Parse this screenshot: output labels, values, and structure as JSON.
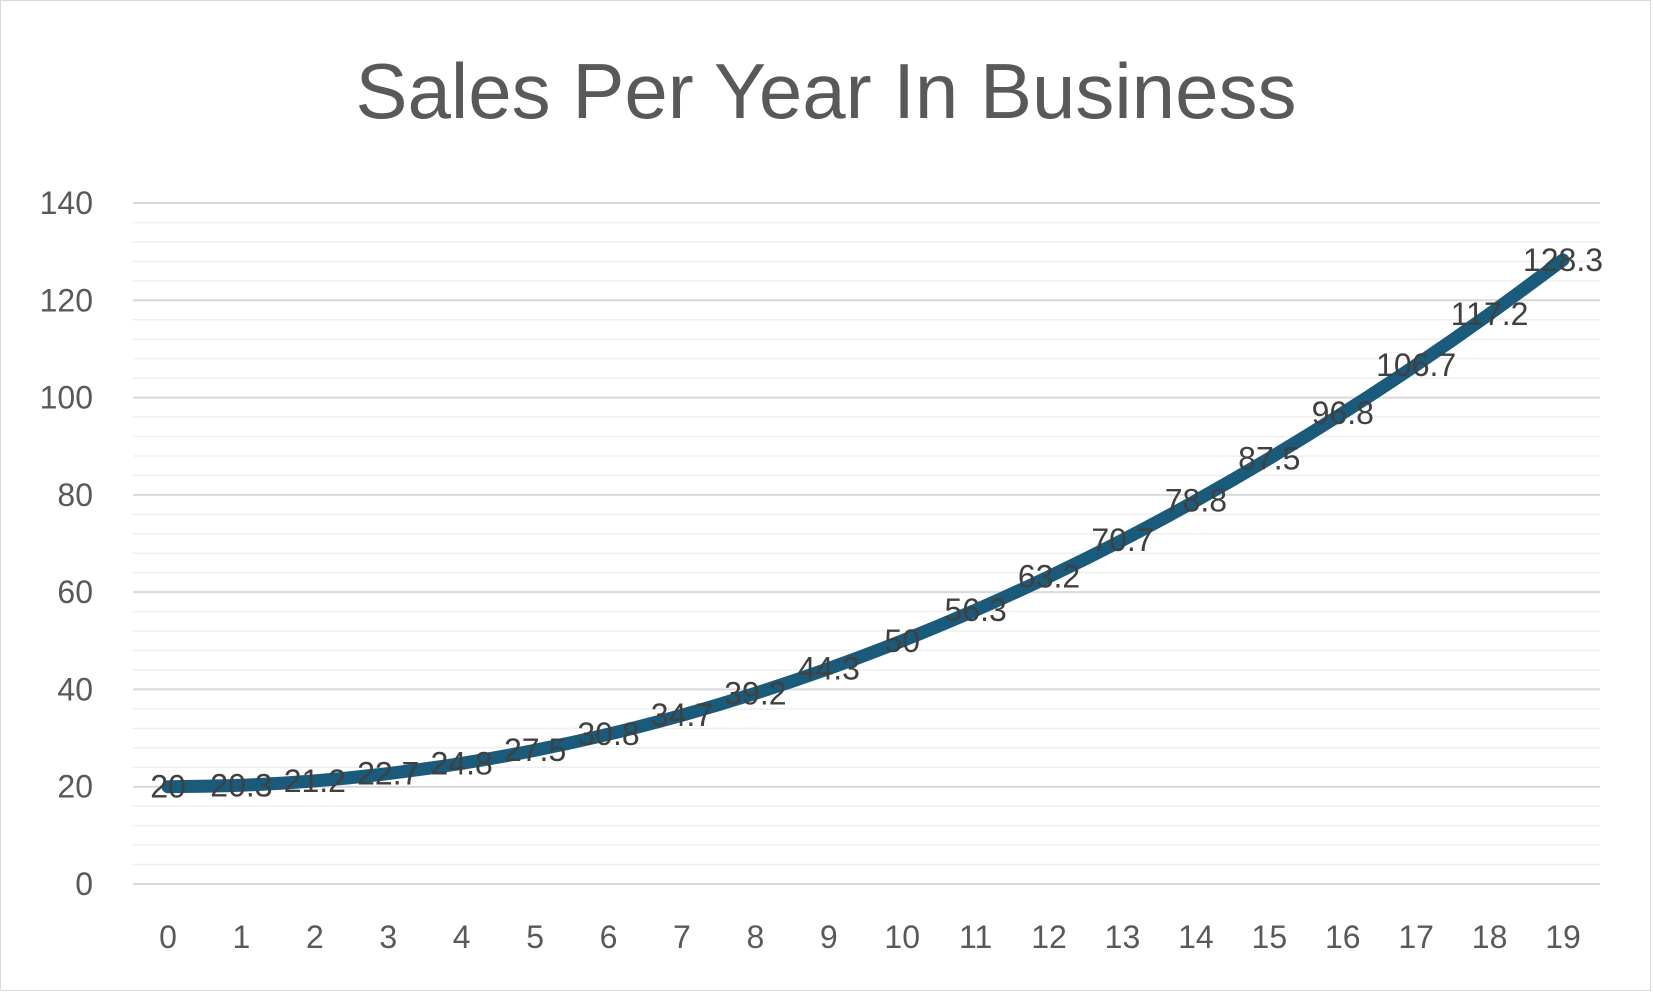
{
  "chart_data": {
    "type": "line",
    "title": "Sales Per Year In Business",
    "xlabel": "",
    "ylabel": "",
    "x": [
      0,
      1,
      2,
      3,
      4,
      5,
      6,
      7,
      8,
      9,
      10,
      11,
      12,
      13,
      14,
      15,
      16,
      17,
      18,
      19
    ],
    "x_tick_labels": [
      "0",
      "1",
      "2",
      "3",
      "4",
      "5",
      "6",
      "7",
      "8",
      "9",
      "10",
      "11",
      "12",
      "13",
      "14",
      "15",
      "16",
      "17",
      "18",
      "19"
    ],
    "y_tick_values": [
      0,
      20,
      40,
      60,
      80,
      100,
      120,
      140
    ],
    "y_tick_labels": [
      "0",
      "20",
      "40",
      "60",
      "80",
      "100",
      "120",
      "140"
    ],
    "ylim": [
      0,
      140
    ],
    "y_minor_step": 4,
    "grid": true,
    "legend": "none",
    "smooth": true,
    "series": [
      {
        "values": [
          20,
          20.3,
          21.2,
          22.7,
          24.8,
          27.5,
          30.8,
          34.7,
          39.2,
          44.3,
          50,
          56.3,
          63.2,
          70.7,
          78.8,
          87.5,
          96.8,
          106.7,
          117.2,
          128.3
        ],
        "data_labels": [
          "20",
          "20.3",
          "21.2",
          "22.7",
          "24.8",
          "27.5",
          "30.8",
          "34.7",
          "39.2",
          "44.3",
          "50",
          "56.3",
          "63.2",
          "70.7",
          "78.8",
          "87.5",
          "96.8",
          "106.7",
          "117.2",
          "128.3"
        ],
        "color": "#1a5a7a"
      }
    ]
  }
}
